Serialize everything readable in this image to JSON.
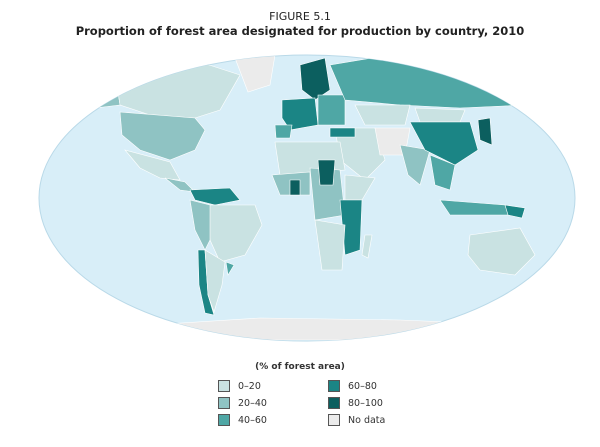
{
  "figure_label": "FIGURE 5.1",
  "title": "Proportion of forest area designated for production by country, 2010",
  "legend": {
    "title": "(% of forest area)",
    "items": [
      {
        "label": "0–20",
        "color": "#c9e2e2"
      },
      {
        "label": "20–40",
        "color": "#8fc3c3"
      },
      {
        "label": "40–60",
        "color": "#4fa7a5"
      },
      {
        "label": "60–80",
        "color": "#1b8585"
      },
      {
        "label": "80–100",
        "color": "#0c5f5f"
      },
      {
        "label": "No data",
        "color": "#ebebeb"
      }
    ]
  },
  "colors": {
    "ocean": "#d8eef8"
  }
}
